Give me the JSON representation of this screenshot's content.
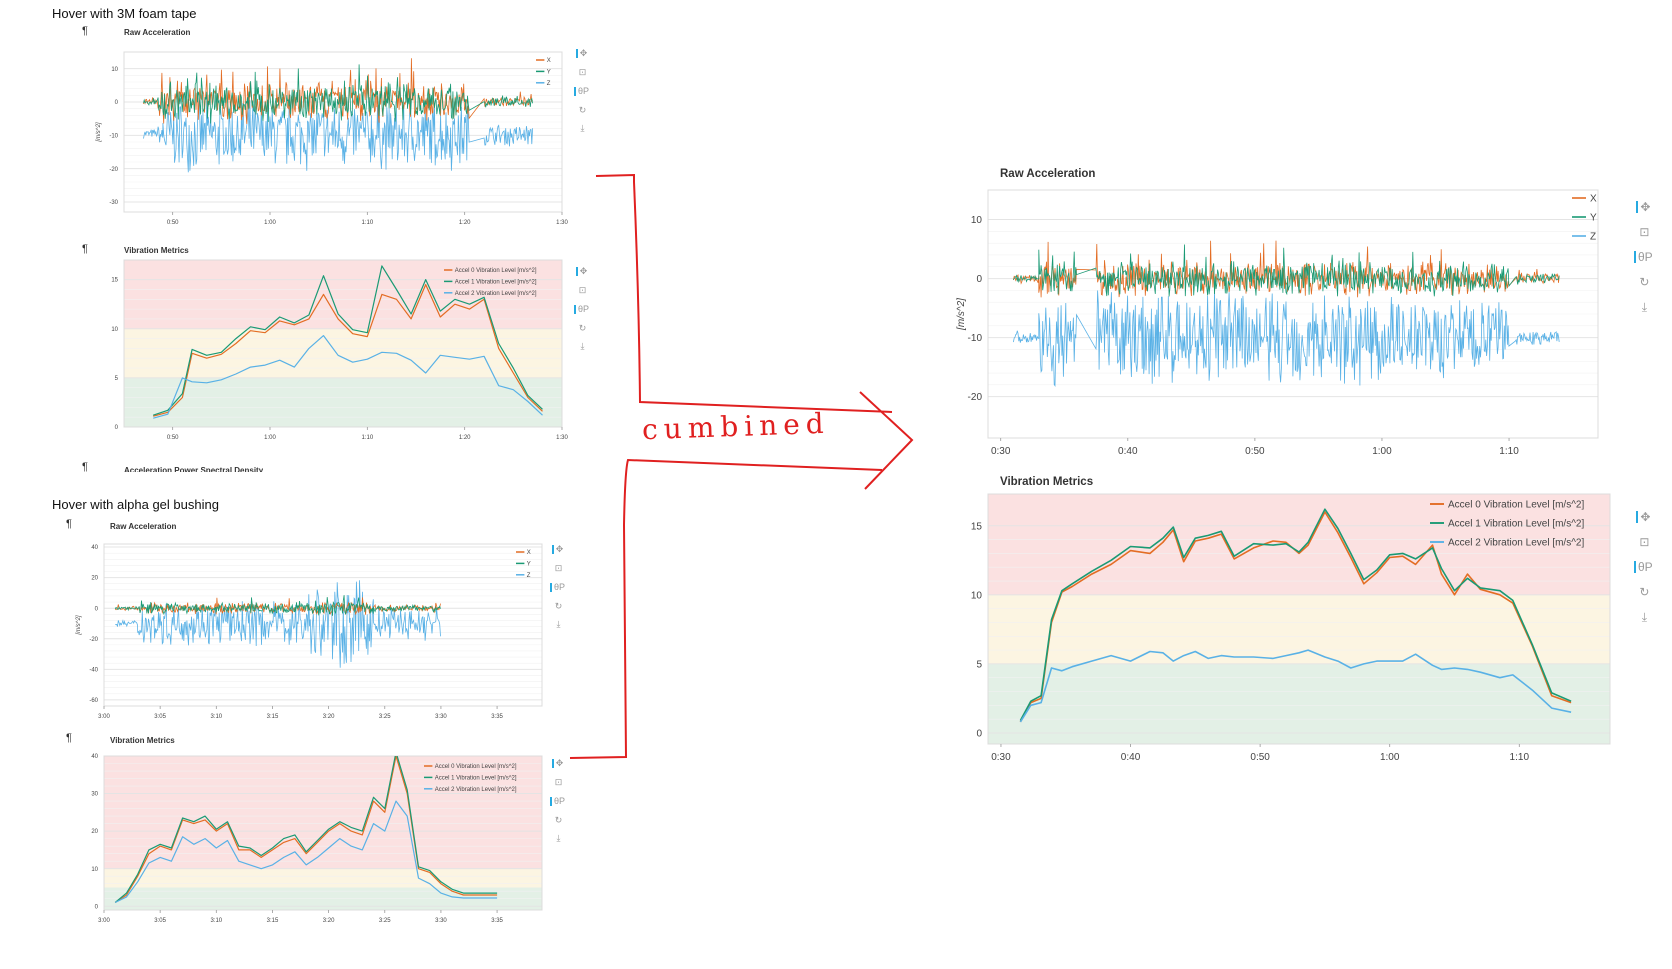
{
  "sections": [
    {
      "heading": "Hover with 3M foam tape"
    },
    {
      "heading": "Hover with alpha gel bushing"
    }
  ],
  "pilcrow": "¶",
  "annotation": "cumbined",
  "cut_off_title": "Acceleration Power Spectral Density",
  "colors": {
    "x": "#e36d24",
    "y": "#1a9a74",
    "z": "#59b1e6",
    "red_band": "#fbe1e1",
    "yellow_band": "#fcf5e2",
    "green_band": "#e3f0e6",
    "marker": "#e02020"
  },
  "tool_icons": [
    "pan-icon",
    "box-zoom-icon",
    "wheel-zoom-icon",
    "reset-icon",
    "save-icon"
  ],
  "tool_glyphs": [
    "✥",
    "⊡",
    "θP",
    "↻",
    "⤓"
  ],
  "chart_data": [
    {
      "id": "foam-raw",
      "type": "line",
      "title": "Raw Acceleration",
      "ylabel": "[m/s^2]",
      "xticks": [
        "0:50",
        "1:00",
        "1:10",
        "1:20",
        "1:30"
      ],
      "xlim": [
        45,
        90
      ],
      "ylim": [
        -33,
        15
      ],
      "yticks": [
        10,
        0,
        -10,
        -20,
        -30
      ],
      "legend": "top-right",
      "series": [
        {
          "name": "X",
          "color": "#e36d24"
        },
        {
          "name": "Y",
          "color": "#1a9a74"
        },
        {
          "name": "Z",
          "color": "#59b1e6"
        }
      ]
    },
    {
      "id": "foam-vib",
      "type": "line",
      "title": "Vibration Metrics",
      "xticks": [
        "0:50",
        "1:00",
        "1:10",
        "1:20",
        "1:30"
      ],
      "xlim": [
        45,
        90
      ],
      "ylim": [
        0,
        17
      ],
      "yticks": [
        15,
        10,
        5,
        0
      ],
      "bands": [
        [
          0,
          5,
          "green"
        ],
        [
          5,
          10,
          "yellow"
        ],
        [
          10,
          17,
          "red"
        ]
      ],
      "legend": "top-right",
      "x": [
        48,
        49.5,
        51,
        52,
        53.5,
        55,
        56.5,
        58,
        59.5,
        61,
        62.5,
        64,
        65.5,
        67,
        68.5,
        70,
        71.5,
        73,
        74.5,
        76,
        77.5,
        79,
        80.5,
        82,
        83.5,
        85,
        86.5,
        88
      ],
      "series": [
        {
          "name": "Accel 0 Vibration Level [m/s^2]",
          "color": "#e36d24",
          "values": [
            1.1,
            1.5,
            3.0,
            7.5,
            7.0,
            7.4,
            8.5,
            9.8,
            9.6,
            10.8,
            10.4,
            11.0,
            13.5,
            11.0,
            9.5,
            9.2,
            13.5,
            13.0,
            11.0,
            14.5,
            11.2,
            12.5,
            12.0,
            13.0,
            8.0,
            5.5,
            3.0,
            1.6
          ]
        },
        {
          "name": "Accel 1 Vibration Level [m/s^2]",
          "color": "#1a9a74",
          "values": [
            1.2,
            1.7,
            3.4,
            7.9,
            7.3,
            7.6,
            9.0,
            10.2,
            9.9,
            11.2,
            10.6,
            11.4,
            15.4,
            11.5,
            9.9,
            9.6,
            16.4,
            14.0,
            11.5,
            15.0,
            11.8,
            13.0,
            12.5,
            13.2,
            8.5,
            6.0,
            3.2,
            1.8
          ]
        },
        {
          "name": "Accel 2 Vibration Level [m/s^2]",
          "color": "#59b1e6",
          "values": [
            0.9,
            1.3,
            5.0,
            4.6,
            4.5,
            4.8,
            5.4,
            6.1,
            6.3,
            6.8,
            6.1,
            8.0,
            9.3,
            7.3,
            6.6,
            6.9,
            7.6,
            7.5,
            6.8,
            5.5,
            7.3,
            7.1,
            6.9,
            7.2,
            4.2,
            3.8,
            2.6,
            1.2
          ]
        }
      ]
    },
    {
      "id": "gel-raw",
      "type": "line",
      "title": "Raw Acceleration",
      "ylabel": "[m/s^2]",
      "xticks": [
        "3:00",
        "3:05",
        "3:10",
        "3:15",
        "3:20",
        "3:25",
        "3:30",
        "3:35"
      ],
      "xlim": [
        180,
        219
      ],
      "ylim": [
        -64,
        42
      ],
      "yticks": [
        40,
        20,
        0,
        -20,
        -40,
        -60
      ],
      "legend": "top-right",
      "series": [
        {
          "name": "X",
          "color": "#e36d24"
        },
        {
          "name": "Y",
          "color": "#1a9a74"
        },
        {
          "name": "Z",
          "color": "#59b1e6"
        }
      ]
    },
    {
      "id": "gel-vib",
      "type": "line",
      "title": "Vibration Metrics",
      "xticks": [
        "3:00",
        "3:05",
        "3:10",
        "3:15",
        "3:20",
        "3:25",
        "3:30",
        "3:35"
      ],
      "xlim": [
        180,
        219
      ],
      "ylim": [
        -1,
        40
      ],
      "yticks": [
        40,
        30,
        20,
        10,
        0
      ],
      "bands": [
        [
          -1,
          5,
          "green"
        ],
        [
          5,
          10,
          "yellow"
        ],
        [
          10,
          40,
          "red"
        ]
      ],
      "legend": "top-right",
      "x": [
        181,
        182,
        183,
        184,
        185,
        186,
        187,
        188,
        189,
        190,
        191,
        192,
        193,
        194,
        195,
        196,
        197,
        198,
        199,
        200,
        201,
        202,
        203,
        204,
        205,
        206,
        207,
        208,
        209,
        210,
        211,
        212,
        213,
        214,
        215
      ],
      "series": [
        {
          "name": "Accel 0 Vibration Level [m/s^2]",
          "color": "#e36d24",
          "values": [
            1,
            3,
            8,
            14,
            16,
            15,
            23,
            22,
            23,
            20,
            22,
            15,
            15,
            13,
            15,
            17,
            18,
            14,
            17,
            20,
            22,
            20,
            19,
            28,
            25,
            40,
            30,
            10,
            9,
            6,
            4,
            3,
            3,
            3,
            3
          ]
        },
        {
          "name": "Accel 1 Vibration Level [m/s^2]",
          "color": "#1a9a74",
          "values": [
            1,
            3.5,
            8.5,
            15,
            16.5,
            15.5,
            23.5,
            22.5,
            24,
            20.5,
            22.5,
            16,
            15.5,
            13.5,
            15.5,
            18,
            19,
            14.5,
            17.5,
            20.5,
            22.5,
            21,
            20,
            29,
            26,
            41,
            31,
            10.5,
            9.5,
            6.5,
            4.5,
            3.5,
            3.5,
            3.5,
            3.5
          ]
        },
        {
          "name": "Accel 2 Vibration Level [m/s^2]",
          "color": "#59b1e6",
          "values": [
            1,
            2.5,
            6.5,
            11.5,
            13,
            12,
            18.5,
            16.5,
            18,
            15.5,
            17.5,
            12,
            11,
            10,
            11,
            13,
            14.5,
            11,
            13,
            15.5,
            18,
            16,
            15,
            22,
            20,
            28,
            24,
            7.5,
            6,
            3.5,
            2.5,
            2.2,
            2.2,
            2.2,
            2.2
          ]
        }
      ]
    },
    {
      "id": "big-raw",
      "type": "line",
      "title": "Raw Acceleration",
      "ylabel": "[m/s^2]",
      "xticks": [
        "0:30",
        "0:40",
        "0:50",
        "1:00",
        "1:10"
      ],
      "xlim": [
        29,
        77
      ],
      "ylim": [
        -27,
        15
      ],
      "yticks": [
        10,
        0,
        -10,
        -20
      ],
      "legend": "top-right",
      "series": [
        {
          "name": "X",
          "color": "#e36d24"
        },
        {
          "name": "Y",
          "color": "#1a9a74"
        },
        {
          "name": "Z",
          "color": "#59b1e6"
        }
      ]
    },
    {
      "id": "big-vib",
      "type": "line",
      "title": "Vibration Metrics",
      "xticks": [
        "0:30",
        "0:40",
        "0:50",
        "1:00",
        "1:10"
      ],
      "xlim": [
        29,
        77
      ],
      "ylim": [
        -0.8,
        17.3
      ],
      "yticks": [
        15,
        10,
        5,
        0
      ],
      "bands": [
        [
          -0.8,
          5,
          "green"
        ],
        [
          5,
          10,
          "yellow"
        ],
        [
          10,
          17.3,
          "red"
        ]
      ],
      "legend": "top-right",
      "x": [
        31.5,
        32.3,
        33.1,
        33.9,
        34.7,
        35.5,
        37,
        38.5,
        40,
        41.5,
        42.5,
        43.3,
        44.1,
        45,
        46,
        47,
        48,
        49.5,
        51,
        52,
        53,
        53.7,
        55,
        56,
        57,
        58,
        59,
        60,
        61,
        62,
        63.3,
        64,
        65,
        66,
        67,
        68.5,
        69.5,
        71,
        72.5,
        74
      ],
      "series": [
        {
          "name": "Accel 0 Vibration Level [m/s^2]",
          "color": "#e36d24",
          "values": [
            0.8,
            2.2,
            2.5,
            8.0,
            10.2,
            10.6,
            11.5,
            12.2,
            13.2,
            13.0,
            13.8,
            14.7,
            12.4,
            13.9,
            14.1,
            14.4,
            12.6,
            13.4,
            13.9,
            13.8,
            13.0,
            13.6,
            16.0,
            14.5,
            12.7,
            10.8,
            11.6,
            12.7,
            12.8,
            12.2,
            13.6,
            11.5,
            10.0,
            11.5,
            10.4,
            10.0,
            9.4,
            6.3,
            2.7,
            2.2
          ]
        },
        {
          "name": "Accel 1 Vibration Level [m/s^2]",
          "color": "#1a9a74",
          "values": [
            0.9,
            2.3,
            2.7,
            8.2,
            10.3,
            10.8,
            11.7,
            12.5,
            13.5,
            13.4,
            14.1,
            14.9,
            12.7,
            14.1,
            14.3,
            14.6,
            12.8,
            13.7,
            13.6,
            13.7,
            13.1,
            13.8,
            16.2,
            14.8,
            13.0,
            11.1,
            11.8,
            12.9,
            13.0,
            12.6,
            13.4,
            11.9,
            10.3,
            11.2,
            10.5,
            10.3,
            9.6,
            6.4,
            2.9,
            2.3
          ]
        },
        {
          "name": "Accel 2 Vibration Level [m/s^2]",
          "color": "#59b1e6",
          "values": [
            0.8,
            2.0,
            2.2,
            4.7,
            4.5,
            4.8,
            5.2,
            5.6,
            5.2,
            5.9,
            5.8,
            5.2,
            5.6,
            5.9,
            5.4,
            5.6,
            5.5,
            5.5,
            5.4,
            5.6,
            5.8,
            6.0,
            5.5,
            5.2,
            4.7,
            5.0,
            5.2,
            5.2,
            5.2,
            5.7,
            4.9,
            4.6,
            4.7,
            4.6,
            4.4,
            4.0,
            4.2,
            3.1,
            1.8,
            1.5
          ]
        }
      ]
    }
  ]
}
